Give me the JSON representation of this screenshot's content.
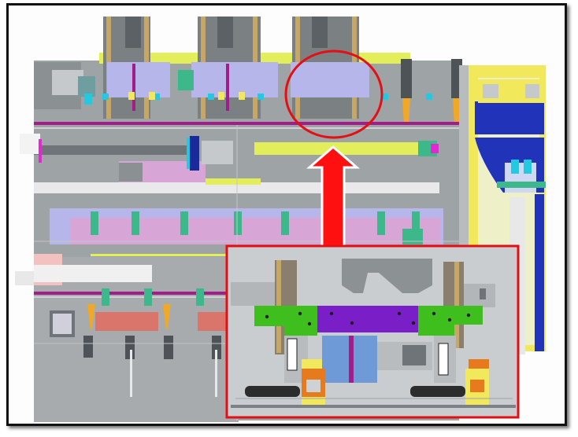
{
  "figure": {
    "background": "#fdfdfd",
    "border_color": "#111111"
  },
  "colors": {
    "machine_gray": "#8f9497",
    "base_gray": "#b8bcbf",
    "rail_dark": "#6f7478",
    "lavender": "#b7b6ea",
    "pink_lilac": "#d8a6d6",
    "mint": "#3db88a",
    "yellow_green": "#e2ef5a",
    "bright_yellow": "#f2e85c",
    "blue": "#2133b8",
    "cyan": "#23c9e0",
    "magenta_rail": "#a01d8a",
    "orange": "#f0a826",
    "salmon": "#d9756a",
    "purple_plate": "#7a1ec8",
    "green_plate": "#3fbf1e",
    "orange_block": "#e87a1e",
    "highlight_red": "#e30f14",
    "arrow_red": "#ff1010"
  },
  "callout": {
    "highlight_shape": "ellipse",
    "arrow_direction": "up",
    "inset_border_color": "#e30f14"
  },
  "icons": {
    "arrow": "up-arrow-icon",
    "circle": "highlight-circle-icon"
  }
}
